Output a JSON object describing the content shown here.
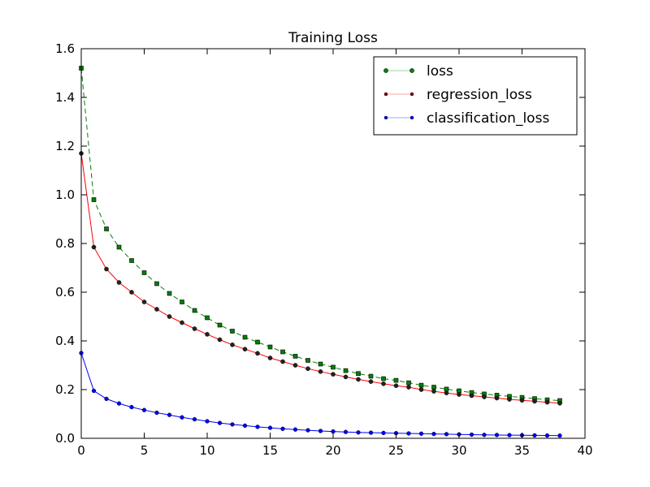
{
  "chart_data": {
    "type": "line",
    "title": "Training Loss",
    "xlabel": "",
    "ylabel": "",
    "xlim": [
      0,
      40
    ],
    "ylim": [
      0.0,
      1.6
    ],
    "xticks": [
      "0",
      "5",
      "10",
      "15",
      "20",
      "25",
      "30",
      "35",
      "40"
    ],
    "yticks": [
      "0.0",
      "0.2",
      "0.4",
      "0.6",
      "0.8",
      "1.0",
      "1.2",
      "1.4",
      "1.6"
    ],
    "grid": false,
    "legend_position": "top-right",
    "x": [
      0,
      1,
      2,
      3,
      4,
      5,
      6,
      7,
      8,
      9,
      10,
      11,
      12,
      13,
      14,
      15,
      16,
      17,
      18,
      19,
      20,
      21,
      22,
      23,
      24,
      25,
      26,
      27,
      28,
      29,
      30,
      31,
      32,
      33,
      34,
      35,
      36,
      37,
      38
    ],
    "series": [
      {
        "name": "loss",
        "color": "#007f00",
        "line_style": "dashed",
        "marker": "square",
        "values": [
          1.52,
          0.98,
          0.86,
          0.785,
          0.73,
          0.68,
          0.635,
          0.595,
          0.56,
          0.525,
          0.495,
          0.465,
          0.44,
          0.415,
          0.395,
          0.375,
          0.355,
          0.337,
          0.32,
          0.305,
          0.292,
          0.278,
          0.266,
          0.255,
          0.245,
          0.238,
          0.228,
          0.218,
          0.21,
          0.202,
          0.195,
          0.188,
          0.182,
          0.177,
          0.172,
          0.168,
          0.163,
          0.158,
          0.155
        ]
      },
      {
        "name": "regression_loss",
        "color": "#ff0000",
        "line_style": "solid",
        "marker": "circle",
        "values": [
          1.17,
          0.785,
          0.695,
          0.64,
          0.6,
          0.56,
          0.53,
          0.5,
          0.475,
          0.45,
          0.427,
          0.405,
          0.384,
          0.366,
          0.349,
          0.33,
          0.315,
          0.3,
          0.286,
          0.274,
          0.263,
          0.252,
          0.242,
          0.233,
          0.224,
          0.216,
          0.21,
          0.2,
          0.193,
          0.186,
          0.18,
          0.175,
          0.17,
          0.165,
          0.16,
          0.156,
          0.152,
          0.148,
          0.144
        ]
      },
      {
        "name": "classification_loss",
        "color": "#0000ff",
        "line_style": "solid",
        "marker": "dot",
        "values": [
          0.35,
          0.195,
          0.162,
          0.143,
          0.128,
          0.116,
          0.105,
          0.096,
          0.086,
          0.078,
          0.07,
          0.063,
          0.057,
          0.052,
          0.047,
          0.043,
          0.039,
          0.036,
          0.033,
          0.03,
          0.028,
          0.026,
          0.024,
          0.023,
          0.022,
          0.021,
          0.02,
          0.019,
          0.018,
          0.017,
          0.016,
          0.015,
          0.014,
          0.0135,
          0.013,
          0.0125,
          0.012,
          0.0115,
          0.011
        ]
      }
    ]
  }
}
